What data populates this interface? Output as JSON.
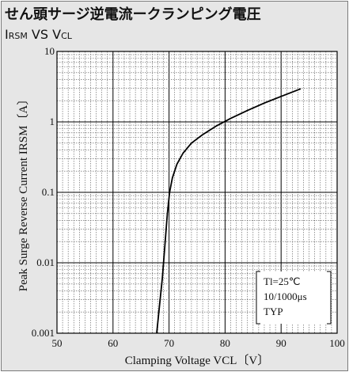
{
  "header": {
    "title_jp": "せん頭サージ逆電流ークランピング電圧",
    "subtitle": {
      "i_main": "I",
      "i_sub": "RSM",
      "vs": " VS ",
      "v_main": "V",
      "v_sub": "CL"
    }
  },
  "chart_data": {
    "type": "line",
    "title": "せん頭サージ逆電流ークランピング電圧",
    "xlabel": "Clamping Voltage  VCL〔V〕",
    "ylabel": "Peak Surge Reverse Current  IRSM〔A〕",
    "x_scale": "linear",
    "y_scale": "log",
    "xlim": [
      50,
      100
    ],
    "ylim": [
      0.001,
      10
    ],
    "x_ticks": [
      50,
      60,
      70,
      80,
      90,
      100
    ],
    "x_tick_labels": [
      "50",
      "60",
      "70",
      "80",
      "90",
      "100"
    ],
    "y_ticks": [
      0.001,
      0.01,
      0.1,
      1,
      10
    ],
    "y_tick_labels": [
      "0.001",
      "0.01",
      "0.1",
      "1",
      "10"
    ],
    "grid": true,
    "series": [
      {
        "x": [
          67.8,
          68.3,
          68.8,
          69.1,
          69.4,
          69.7,
          70.1,
          70.6,
          71.4,
          72.5,
          74.0,
          76.0,
          78.5,
          81.0,
          84.0,
          87.0,
          90.0,
          93.5
        ],
        "y": [
          0.001,
          0.0025,
          0.006,
          0.012,
          0.025,
          0.05,
          0.1,
          0.16,
          0.25,
          0.36,
          0.5,
          0.66,
          0.88,
          1.12,
          1.45,
          1.85,
          2.3,
          2.95
        ]
      }
    ],
    "annotation": {
      "lines": [
        "Tl=25℃",
        "10/1000μs",
        "TYP"
      ]
    }
  }
}
